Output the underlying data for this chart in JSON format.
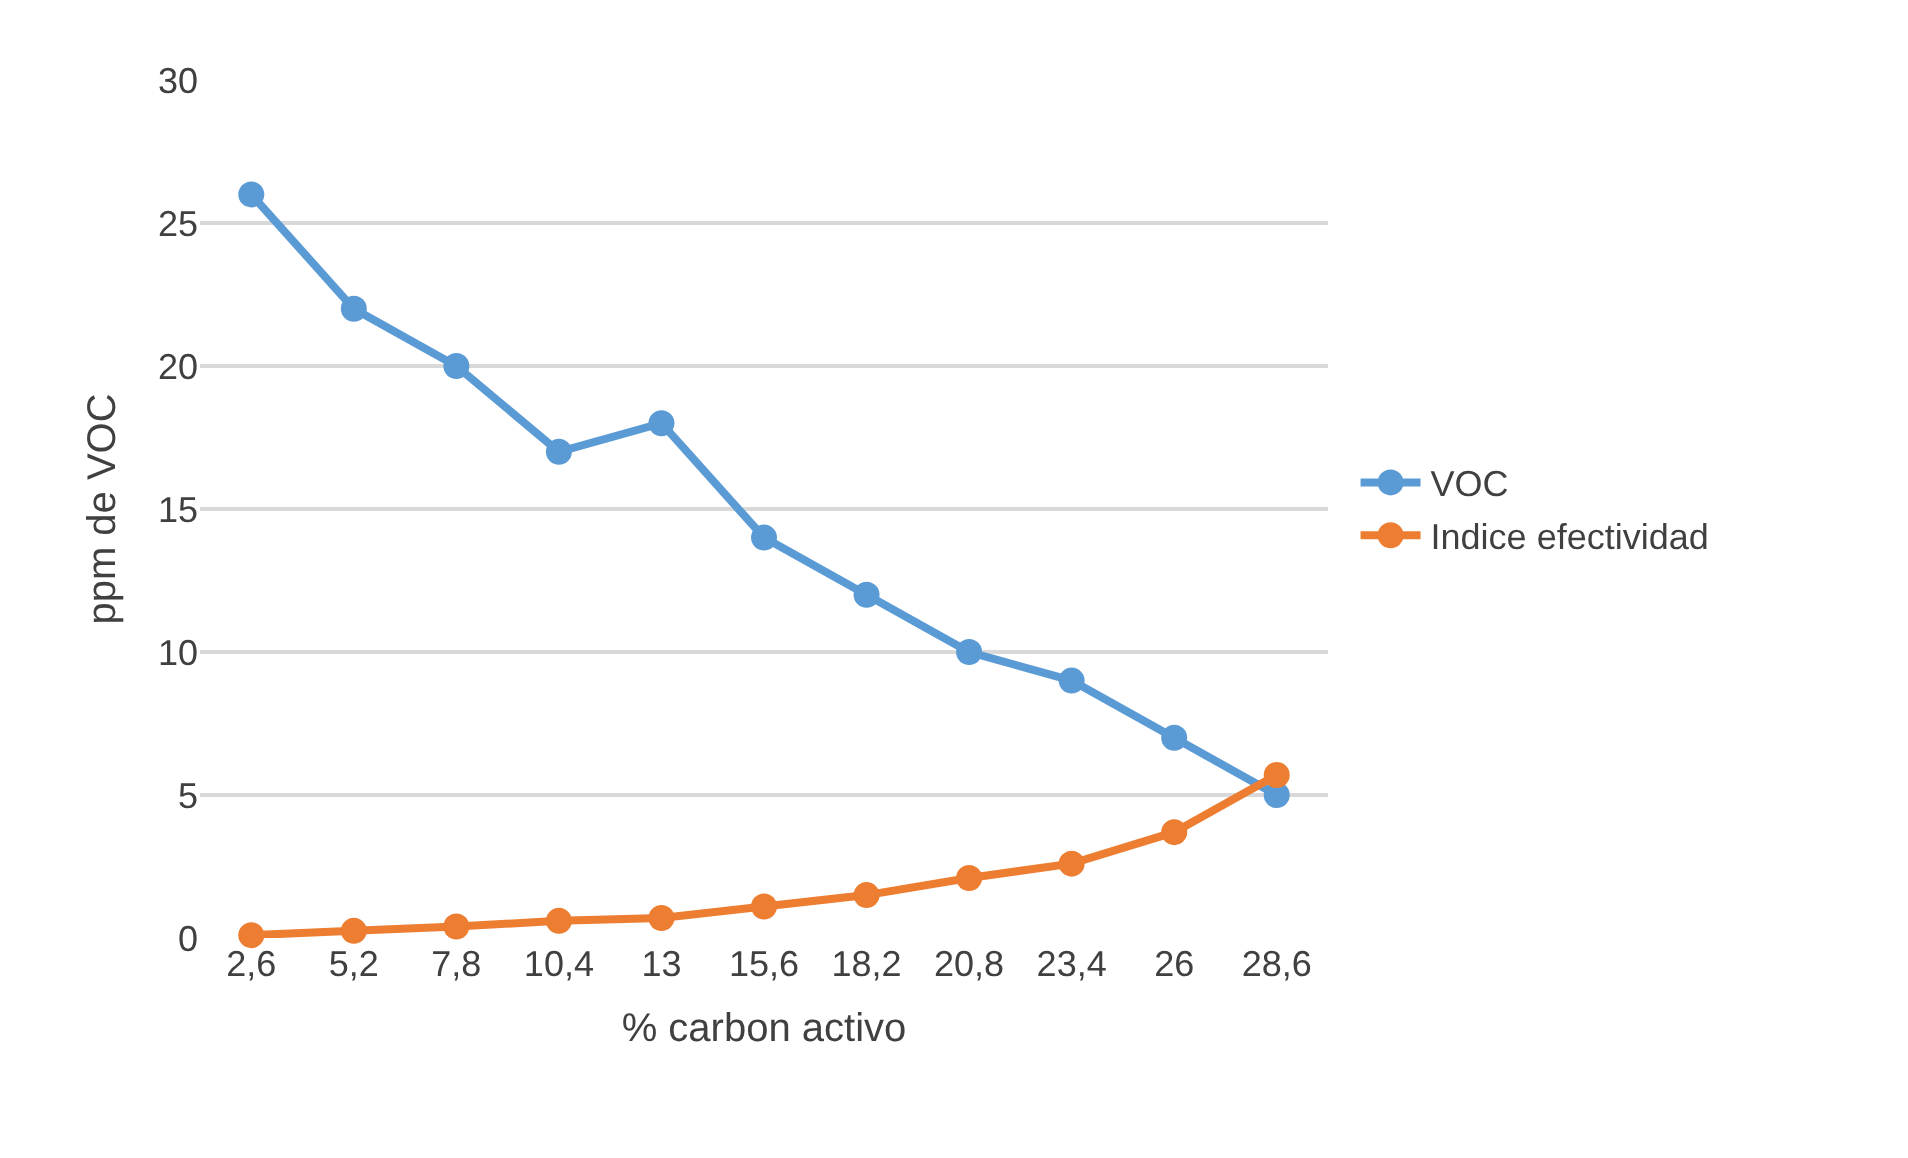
{
  "chart_data": {
    "type": "line",
    "xlabel": "% carbon activo",
    "ylabel": "ppm de VOC",
    "categories": [
      "2,6",
      "5,2",
      "7,8",
      "10,4",
      "13",
      "15,6",
      "18,2",
      "20,8",
      "23,4",
      "26",
      "28,6"
    ],
    "series": [
      {
        "name": "VOC",
        "color": "#5b9bd5",
        "values": [
          26,
          22,
          20,
          17,
          18,
          14,
          12,
          10,
          9,
          7,
          5
        ]
      },
      {
        "name": "Indice efectividad",
        "color": "#ed7d31",
        "values": [
          0.1,
          0.25,
          0.4,
          0.6,
          0.7,
          1.1,
          1.5,
          2.1,
          2.6,
          3.7,
          5.7
        ]
      }
    ],
    "ylim": [
      0,
      30
    ],
    "yticks": [
      0,
      5,
      10,
      15,
      20,
      25,
      30
    ],
    "grid": "y",
    "legend": "right",
    "marker": "circle",
    "line_style": "solid"
  }
}
